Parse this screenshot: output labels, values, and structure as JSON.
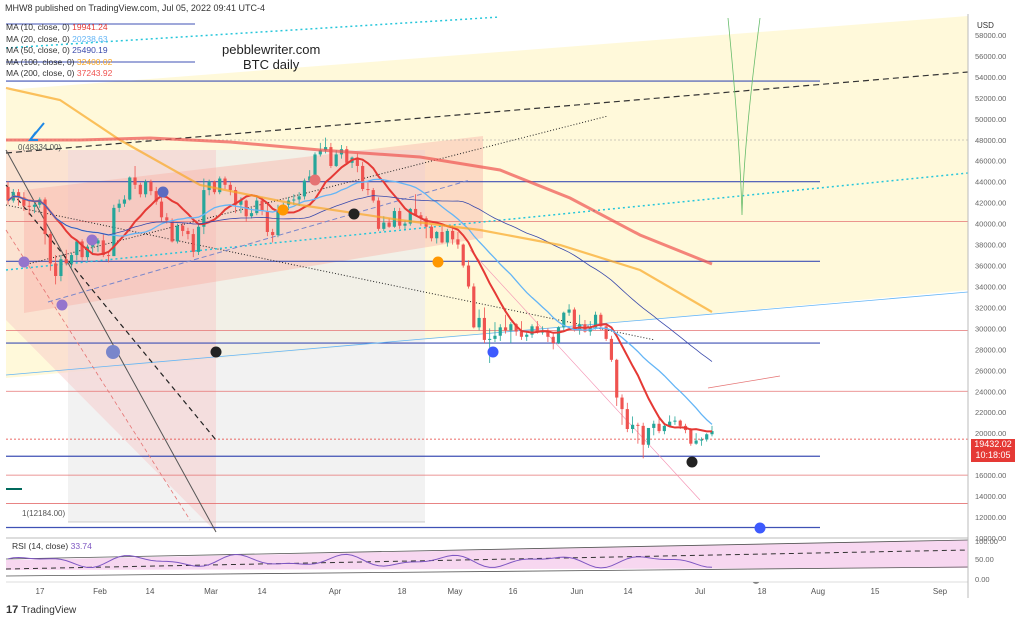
{
  "header": {
    "publisher": "MHW8 published on TradingView.com, Jul 05, 2022 09:41 UTC-4"
  },
  "watermark": {
    "line1": "pebblewriter.com",
    "line2": "BTC daily"
  },
  "legend": [
    {
      "label": "MA (10, close, 0)",
      "value": "19941.24",
      "color": "#e53935"
    },
    {
      "label": "MA (20, close, 0)",
      "value": "20238.63",
      "color": "#64b5f6"
    },
    {
      "label": "MA (50, close, 0)",
      "value": "25490.19",
      "color": "#3949ab"
    },
    {
      "label": "MA (100, close, 0)",
      "value": "32400.02",
      "color": "#f9a825"
    },
    {
      "label": "MA (200, close, 0)",
      "value": "37243.92",
      "color": "#ef5350"
    }
  ],
  "rsi": {
    "label": "RSI (14, close)",
    "value": "33.74",
    "ticks": [
      "100.00",
      "50.00",
      "0.00"
    ]
  },
  "price_tag": {
    "value": "19432.02",
    "countdown": "10:18:05"
  },
  "annotations": {
    "high_label": "0(48334.00)",
    "low_label": "1(12184.00)"
  },
  "branding": {
    "name": "TradingView"
  },
  "colors": {
    "up": "#26a69a",
    "down": "#ef5350",
    "ma10": "#e53935",
    "ma20": "#64b5f6",
    "ma50": "#3949ab",
    "ma100": "#f9a825",
    "ma200": "#ef5350",
    "hline_blue": "#3f51b5",
    "hline_red": "#e57373"
  },
  "chart_data": {
    "type": "candlestick",
    "symbol": "BTC daily",
    "y_axis_unit": "USD",
    "y_ticks": [
      58000,
      56000,
      54000,
      52000,
      50000,
      48000,
      46000,
      44000,
      42000,
      40000,
      38000,
      36000,
      34000,
      32000,
      30000,
      28000,
      26000,
      24000,
      22000,
      20000,
      18000,
      16000,
      14000,
      12000,
      10000
    ],
    "x_ticks": [
      "17",
      "Feb",
      "14",
      "Mar",
      "14",
      "Apr",
      "18",
      "May",
      "16",
      "Jun",
      "14",
      "Jul",
      "18",
      "Aug",
      "15",
      "Sep"
    ],
    "ylim": [
      10000,
      60000
    ],
    "horizontal_levels_blue": [
      53600,
      44000,
      36400,
      28600,
      17800,
      11000
    ],
    "horizontal_levels_red": [
      40200,
      29800,
      24000,
      16000,
      13300
    ],
    "last_price": 19432.02,
    "candles": [
      [
        43500,
        44000,
        41800,
        42200
      ],
      [
        42200,
        43300,
        42000,
        43000
      ],
      [
        43000,
        43300,
        41700,
        42500
      ],
      [
        42500,
        43000,
        41200,
        41700
      ],
      [
        41700,
        42200,
        40800,
        41600
      ],
      [
        41600,
        42000,
        41000,
        41800
      ],
      [
        41800,
        42500,
        41500,
        42300
      ],
      [
        42300,
        42500,
        38000,
        39000
      ],
      [
        39000,
        39200,
        35500,
        36200
      ],
      [
        36200,
        37000,
        34200,
        35000
      ],
      [
        35000,
        37000,
        34500,
        36600
      ],
      [
        36600,
        37500,
        36000,
        36200
      ],
      [
        36200,
        37200,
        35800,
        37000
      ],
      [
        37000,
        38500,
        36500,
        38300
      ],
      [
        38300,
        38500,
        36500,
        36800
      ],
      [
        36800,
        38000,
        36500,
        37800
      ],
      [
        37800,
        38200,
        37200,
        38100
      ],
      [
        38100,
        38600,
        37300,
        38400
      ],
      [
        38400,
        39000,
        36800,
        37000
      ],
      [
        37000,
        37400,
        36300,
        36900
      ],
      [
        36900,
        41800,
        36900,
        41500
      ],
      [
        41500,
        42300,
        41100,
        41900
      ],
      [
        41900,
        42700,
        41600,
        42300
      ],
      [
        42300,
        44500,
        42200,
        44400
      ],
      [
        44400,
        45500,
        43300,
        43700
      ],
      [
        43700,
        43900,
        42500,
        42800
      ],
      [
        42800,
        44200,
        42500,
        44000
      ],
      [
        44000,
        44200,
        42700,
        43100
      ],
      [
        43100,
        43500,
        41800,
        42100
      ],
      [
        42100,
        43000,
        40200,
        40600
      ],
      [
        40600,
        41000,
        40000,
        40300
      ],
      [
        40300,
        40500,
        38200,
        38300
      ],
      [
        38300,
        40000,
        38100,
        39800
      ],
      [
        39800,
        40100,
        38800,
        39300
      ],
      [
        39300,
        39600,
        38500,
        39000
      ],
      [
        39000,
        39500,
        36800,
        37300
      ],
      [
        37300,
        40000,
        37000,
        39700
      ],
      [
        39700,
        44300,
        39000,
        43200
      ],
      [
        43200,
        44200,
        42700,
        44000
      ],
      [
        44000,
        44100,
        42800,
        43000
      ],
      [
        43000,
        44500,
        42800,
        44300
      ],
      [
        44300,
        44500,
        43300,
        43700
      ],
      [
        43700,
        44000,
        42700,
        43200
      ],
      [
        43200,
        43500,
        41000,
        41800
      ],
      [
        41800,
        42500,
        41000,
        42200
      ],
      [
        42200,
        42300,
        40200,
        40700
      ],
      [
        40700,
        41500,
        40500,
        41000
      ],
      [
        41000,
        42500,
        40800,
        42200
      ],
      [
        42200,
        42500,
        40800,
        41200
      ],
      [
        41200,
        42000,
        38800,
        39200
      ],
      [
        39200,
        39500,
        38200,
        38900
      ],
      [
        38900,
        41800,
        38700,
        41200
      ],
      [
        41200,
        42000,
        40900,
        41800
      ],
      [
        41800,
        42500,
        41300,
        42200
      ],
      [
        42200,
        42800,
        41800,
        42300
      ],
      [
        42300,
        43000,
        41700,
        42600
      ],
      [
        42600,
        44300,
        42300,
        44100
      ],
      [
        44100,
        45100,
        44000,
        44500
      ],
      [
        44500,
        46800,
        44000,
        46600
      ],
      [
        46600,
        47700,
        46400,
        47000
      ],
      [
        47000,
        48200,
        46700,
        47300
      ],
      [
        47300,
        47700,
        45300,
        45500
      ],
      [
        45500,
        47000,
        45400,
        46600
      ],
      [
        46600,
        47500,
        46200,
        47100
      ],
      [
        47100,
        47400,
        45600,
        45800
      ],
      [
        45800,
        46400,
        45300,
        46300
      ],
      [
        46300,
        46700,
        44900,
        45500
      ],
      [
        45500,
        45900,
        43100,
        43300
      ],
      [
        43300,
        43900,
        42700,
        43200
      ],
      [
        43200,
        43400,
        42000,
        42200
      ],
      [
        42200,
        42500,
        39300,
        39500
      ],
      [
        39500,
        40700,
        39300,
        40100
      ],
      [
        40100,
        40500,
        39600,
        39700
      ],
      [
        39700,
        41500,
        39600,
        41200
      ],
      [
        41200,
        41500,
        39500,
        39800
      ],
      [
        39800,
        40300,
        39400,
        40000
      ],
      [
        40000,
        41500,
        39800,
        41400
      ],
      [
        41400,
        42800,
        40700,
        40800
      ],
      [
        40800,
        41100,
        39800,
        40500
      ],
      [
        40500,
        40700,
        38600,
        39700
      ],
      [
        39700,
        39900,
        38300,
        38600
      ],
      [
        38600,
        39300,
        38100,
        39200
      ],
      [
        39200,
        40000,
        38100,
        38200
      ],
      [
        38200,
        39500,
        37800,
        39300
      ],
      [
        39300,
        39800,
        38000,
        38500
      ],
      [
        38500,
        39200,
        37600,
        38000
      ],
      [
        38000,
        38100,
        35800,
        36000
      ],
      [
        36000,
        36500,
        33800,
        34000
      ],
      [
        34000,
        34300,
        30000,
        30100
      ],
      [
        30100,
        31800,
        29800,
        31000
      ],
      [
        31000,
        32000,
        28600,
        28900
      ],
      [
        28900,
        30000,
        26700,
        29000
      ],
      [
        29000,
        30600,
        28700,
        29300
      ],
      [
        29300,
        30400,
        28800,
        30100
      ],
      [
        30100,
        31300,
        29500,
        29800
      ],
      [
        29800,
        30600,
        28600,
        30400
      ],
      [
        30400,
        30500,
        29300,
        29700
      ],
      [
        29700,
        30700,
        28900,
        29200
      ],
      [
        29200,
        29700,
        28800,
        29400
      ],
      [
        29400,
        30400,
        29100,
        30200
      ],
      [
        30200,
        30700,
        29500,
        29600
      ],
      [
        29600,
        30200,
        29400,
        29700
      ],
      [
        29700,
        30000,
        28700,
        29200
      ],
      [
        29200,
        29500,
        28000,
        28600
      ],
      [
        28600,
        30200,
        28500,
        30100
      ],
      [
        30100,
        31600,
        29700,
        31500
      ],
      [
        31500,
        32300,
        31200,
        31800
      ],
      [
        31800,
        32000,
        29700,
        29900
      ],
      [
        29900,
        31300,
        29400,
        30400
      ],
      [
        30400,
        30800,
        29600,
        29700
      ],
      [
        29700,
        30700,
        29300,
        30100
      ],
      [
        30100,
        31600,
        29900,
        31300
      ],
      [
        31300,
        31500,
        29800,
        30200
      ],
      [
        30200,
        30400,
        28800,
        29000
      ],
      [
        29000,
        29300,
        26800,
        27000
      ],
      [
        27000,
        27100,
        22600,
        23400
      ],
      [
        23400,
        23700,
        20800,
        22300
      ],
      [
        22300,
        22900,
        20100,
        20400
      ],
      [
        20400,
        21600,
        20000,
        20800
      ],
      [
        20800,
        21000,
        19000,
        20700
      ],
      [
        20700,
        21000,
        17600,
        18900
      ],
      [
        18900,
        20500,
        18600,
        20500
      ],
      [
        20500,
        21200,
        19800,
        20900
      ],
      [
        20900,
        21500,
        20000,
        20200
      ],
      [
        20200,
        21000,
        19900,
        20700
      ],
      [
        20700,
        21700,
        20600,
        21100
      ],
      [
        21100,
        21600,
        20800,
        21200
      ],
      [
        21200,
        21300,
        20400,
        20700
      ],
      [
        20700,
        20900,
        20000,
        20300
      ],
      [
        20300,
        20500,
        18800,
        19000
      ],
      [
        19000,
        20000,
        18900,
        19300
      ],
      [
        19300,
        19600,
        18800,
        19400
      ],
      [
        19400,
        20000,
        19200,
        19900
      ],
      [
        19900,
        20700,
        19700,
        20200
      ]
    ]
  }
}
